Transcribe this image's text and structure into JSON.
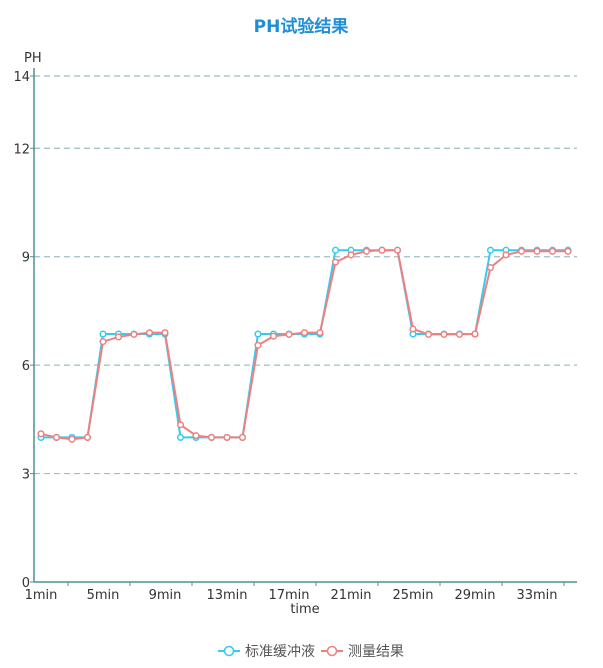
{
  "chart_data": {
    "type": "line",
    "title": "PH试验结果",
    "xlabel": "time",
    "ylabel": "PH",
    "ylim": [
      0,
      14
    ],
    "yticks": [
      0,
      3,
      6,
      9,
      12,
      14
    ],
    "grid": true,
    "legend_position": "bottom",
    "categories": [
      "1min",
      "2min",
      "3min",
      "4min",
      "5min",
      "6min",
      "7min",
      "8min",
      "9min",
      "10min",
      "11min",
      "12min",
      "13min",
      "14min",
      "15min",
      "16min",
      "17min",
      "18min",
      "19min",
      "20min",
      "21min",
      "22min",
      "23min",
      "24min",
      "25min",
      "26min",
      "27min",
      "28min",
      "29min",
      "30min",
      "31min",
      "32min",
      "33min",
      "34min",
      "35min"
    ],
    "xtick_labels": [
      "1min",
      "5min",
      "9min",
      "13min",
      "17min",
      "21min",
      "25min",
      "29min",
      "33min"
    ],
    "series": [
      {
        "name": "标准缓冲液",
        "color": "#33ccee",
        "values": [
          4,
          4,
          4,
          4,
          6.86,
          6.86,
          6.86,
          6.86,
          6.86,
          4,
          4,
          4,
          4,
          4,
          6.86,
          6.86,
          6.86,
          6.86,
          6.86,
          9.18,
          9.18,
          9.18,
          9.18,
          9.18,
          6.86,
          6.86,
          6.86,
          6.86,
          6.86,
          9.18,
          9.18,
          9.18,
          9.18,
          9.18,
          9.18
        ]
      },
      {
        "name": "测量结果",
        "color": "#f08080",
        "values": [
          4.1,
          4.0,
          3.95,
          4.0,
          6.65,
          6.78,
          6.85,
          6.9,
          6.9,
          4.35,
          4.05,
          4.0,
          4.0,
          4.0,
          6.55,
          6.8,
          6.85,
          6.9,
          6.9,
          8.85,
          9.05,
          9.15,
          9.18,
          9.18,
          7.0,
          6.85,
          6.85,
          6.85,
          6.86,
          8.7,
          9.05,
          9.15,
          9.15,
          9.15,
          9.15
        ]
      }
    ]
  },
  "colors": {
    "title": "#1e8fd6",
    "axis": "#4f8f99",
    "grid": "#9fbfc4"
  }
}
